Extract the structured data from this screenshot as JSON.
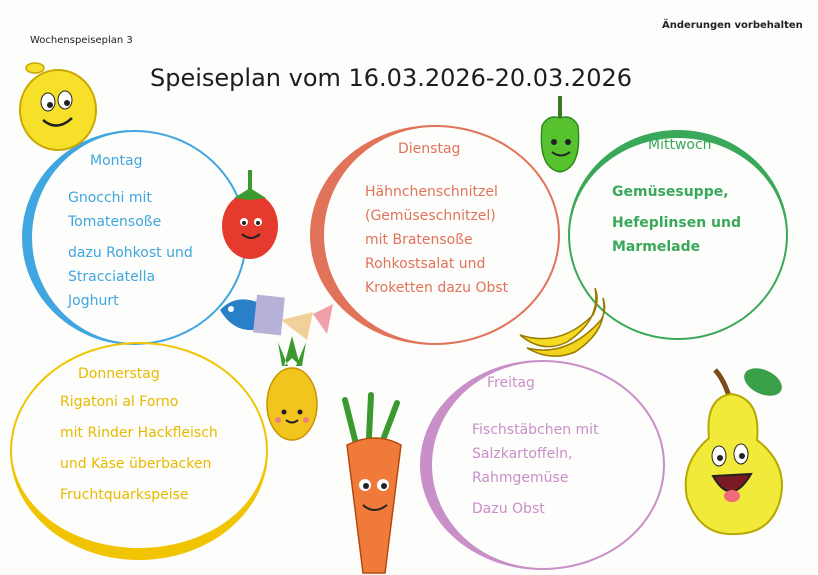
{
  "header": {
    "plan_number": "Wochenspeiseplan 3",
    "notice": "Änderungen vorbehalten",
    "title": "Speiseplan vom 16.03.2026-20.03.2026"
  },
  "days": [
    {
      "name": "Montag",
      "color": "#3fa6df",
      "lines": [
        "Gnocchi mit",
        "Tomatensoße",
        "dazu Rohkost und",
        "Stracciatella",
        "Joghurt"
      ]
    },
    {
      "name": "Dienstag",
      "color": "#e0735a",
      "lines": [
        "Hähnchenschnitzel",
        "(Gemüseschnitzel)",
        "mit Bratensoße",
        "Rohkostsalat und",
        "Kroketten dazu Obst"
      ]
    },
    {
      "name": "Mittwoch",
      "color": "#3aa85a",
      "lines": [
        "Gemüsesuppe,",
        "Hefeplinsen und",
        "Marmelade"
      ]
    },
    {
      "name": "Donnerstag",
      "color": "#f0c400",
      "lines": [
        "Rigatoni al Forno",
        "mit Rinder Hackfleisch",
        "und Käse überbacken",
        "Fruchtquarkspeise"
      ]
    },
    {
      "name": "Freitag",
      "color": "#c98fc8",
      "lines": [
        "Fischstäbchen mit",
        "Salzkartoffeln,",
        "Rahmgemüse",
        "Dazu Obst"
      ]
    }
  ],
  "icons": [
    "lemon-icon",
    "tomato-icon",
    "pepper-icon",
    "banana-icon",
    "fish-icon",
    "pineapple-icon",
    "carrot-icon",
    "pear-icon"
  ]
}
